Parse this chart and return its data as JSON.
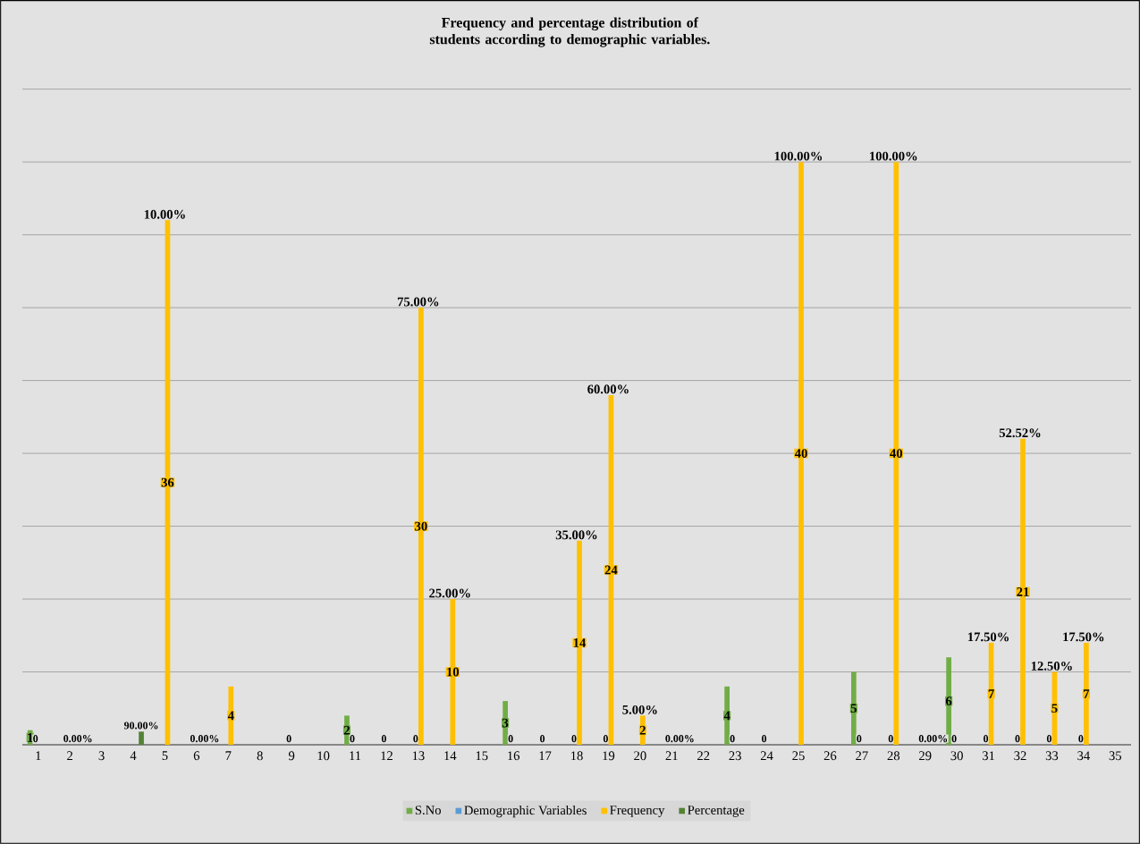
{
  "chart_data": {
    "type": "bar",
    "title": "Frequency and percentage distribution of students according to demographic variables.",
    "categories": [
      "1",
      "2",
      "3",
      "4",
      "5",
      "6",
      "7",
      "8",
      "9",
      "10",
      "11",
      "12",
      "13",
      "14",
      "15",
      "16",
      "17",
      "18",
      "19",
      "20",
      "21",
      "22",
      "23",
      "24",
      "25",
      "26",
      "27",
      "28",
      "29",
      "30",
      "31",
      "32",
      "33",
      "34",
      "35"
    ],
    "series": [
      {
        "name": "S.No",
        "color": "#70ad47",
        "values": [
          1,
          null,
          null,
          null,
          null,
          null,
          null,
          null,
          null,
          null,
          2,
          null,
          null,
          null,
          null,
          3,
          null,
          null,
          null,
          null,
          null,
          null,
          4,
          null,
          null,
          null,
          5,
          null,
          null,
          6,
          null,
          null,
          null,
          null,
          null
        ],
        "value_labels": [
          "1",
          null,
          null,
          null,
          null,
          null,
          null,
          null,
          null,
          null,
          "2",
          null,
          null,
          null,
          null,
          "3",
          null,
          null,
          null,
          null,
          null,
          null,
          "4",
          null,
          null,
          null,
          "5",
          null,
          null,
          "6",
          null,
          null,
          null,
          null,
          null
        ]
      },
      {
        "name": "Demographic Variables",
        "color": "#5b9bd5",
        "values": [
          0,
          null,
          null,
          null,
          null,
          null,
          null,
          null,
          0,
          null,
          0,
          0,
          0,
          null,
          null,
          0,
          0,
          0,
          0,
          null,
          null,
          null,
          0,
          0,
          null,
          null,
          0,
          0,
          null,
          0,
          0,
          0,
          0,
          0,
          null
        ],
        "value_labels": [
          "0",
          null,
          null,
          null,
          null,
          null,
          null,
          null,
          "0",
          null,
          "0",
          "0",
          "0",
          null,
          null,
          "0",
          "0",
          "0",
          "0",
          null,
          null,
          null,
          "0",
          "0",
          null,
          null,
          "0",
          "0",
          null,
          "0",
          "0",
          "0",
          "0",
          "0",
          null
        ]
      },
      {
        "name": "Frequency",
        "color": "#ffc000",
        "values": [
          null,
          null,
          null,
          null,
          36,
          null,
          4,
          null,
          null,
          null,
          null,
          null,
          30,
          10,
          null,
          null,
          null,
          14,
          24,
          2,
          null,
          null,
          null,
          null,
          40,
          null,
          null,
          40,
          null,
          null,
          7,
          21,
          5,
          7,
          null
        ],
        "value_labels": [
          null,
          null,
          null,
          null,
          "36",
          null,
          "4",
          null,
          null,
          null,
          null,
          null,
          "30",
          "10",
          null,
          null,
          null,
          "14",
          "24",
          "2",
          null,
          null,
          null,
          null,
          "40",
          null,
          null,
          "40",
          null,
          null,
          "7",
          "21",
          "5",
          "7",
          null
        ]
      },
      {
        "name": "Percentage",
        "color": "#548235",
        "values": [
          null,
          0,
          null,
          0.9,
          null,
          0,
          null,
          null,
          null,
          null,
          null,
          null,
          null,
          null,
          null,
          null,
          null,
          null,
          null,
          null,
          0,
          null,
          null,
          null,
          null,
          null,
          null,
          null,
          0,
          null,
          null,
          null,
          null,
          null,
          null
        ],
        "value_labels": [
          null,
          "0.00%",
          null,
          "90.00%",
          null,
          "0.00%",
          null,
          null,
          null,
          null,
          null,
          null,
          null,
          null,
          null,
          null,
          null,
          null,
          null,
          null,
          "0.00%",
          null,
          null,
          null,
          null,
          null,
          null,
          null,
          "0.00%",
          null,
          null,
          null,
          null,
          null,
          null
        ]
      }
    ],
    "annotations": [
      {
        "text": "10.00%",
        "x": "5",
        "y": 36
      },
      {
        "text": "75.00%",
        "x": "13",
        "y": 30
      },
      {
        "text": "25.00%",
        "x": "14",
        "y": 10
      },
      {
        "text": "35.00%",
        "x": "18",
        "y": 14
      },
      {
        "text": "60.00%",
        "x": "19",
        "y": 24
      },
      {
        "text": "5.00%",
        "x": "20",
        "y": 2
      },
      {
        "text": "100.00%",
        "x": "25",
        "y": 40
      },
      {
        "text": "100.00%",
        "x": "28",
        "y": 40
      },
      {
        "text": "17.50%",
        "x": "31",
        "y": 7
      },
      {
        "text": "52.52%",
        "x": "32",
        "y": 21
      },
      {
        "text": "12.50%",
        "x": "33",
        "y": 5
      },
      {
        "text": "17.50%",
        "x": "34",
        "y": 7
      }
    ],
    "ylim": [
      0,
      45
    ],
    "yticks": [
      {
        "value": 0,
        "label": null
      },
      {
        "value": 5,
        "label": null
      },
      {
        "value": 10,
        "label": null
      },
      {
        "value": 15,
        "label": null
      },
      {
        "value": 20,
        "label": null
      },
      {
        "value": 25,
        "label": null
      },
      {
        "value": 30,
        "label": null
      },
      {
        "value": 35,
        "label": null
      },
      {
        "value": 40,
        "label": null
      },
      {
        "value": 45,
        "label": null
      }
    ],
    "tick_labels": "x",
    "grid": "y",
    "legend": "bottom"
  }
}
